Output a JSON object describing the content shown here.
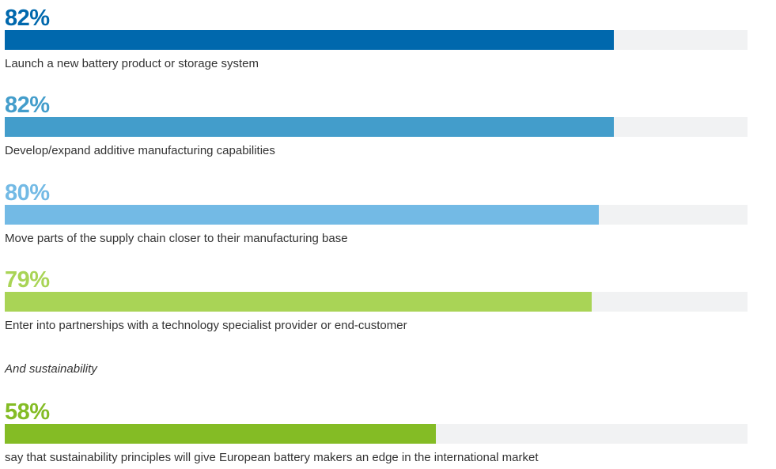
{
  "chart_data": {
    "type": "bar",
    "orientation": "horizontal",
    "title": "",
    "xlabel": "",
    "ylabel": "",
    "xlim": [
      0,
      100
    ],
    "grid": false,
    "legend": null,
    "track_color": "#f1f2f3",
    "categories": [
      "Launch a new battery product or storage system",
      "Develop/expand additive manufacturing capabilities",
      "Move parts of the supply chain closer to their manufacturing base",
      "Enter into partnerships with a technology specialist provider or end-customer",
      "say that sustainability principles will give European battery makers an edge in the international market"
    ],
    "values": [
      82,
      82,
      80,
      79,
      58
    ],
    "value_labels": [
      "82%",
      "82%",
      "80%",
      "79%",
      "58%"
    ],
    "colors": [
      "#0068ad",
      "#439dcb",
      "#73bae5",
      "#a9d456",
      "#84bc25"
    ],
    "annotations": [
      "And sustainability"
    ]
  },
  "items": [
    {
      "pct": "82%",
      "value": 82,
      "label": "Launch a new battery product or storage system",
      "color": "#0068ad"
    },
    {
      "pct": "82%",
      "value": 82,
      "label": "Develop/expand additive manufacturing capabilities",
      "color": "#439dcb"
    },
    {
      "pct": "80%",
      "value": 80,
      "label": "Move parts of the supply chain closer to their manufacturing base",
      "color": "#73bae5"
    },
    {
      "pct": "79%",
      "value": 79,
      "label": "Enter into partnerships with a technology specialist provider or end-customer",
      "color": "#a9d456"
    },
    {
      "pct": "58%",
      "value": 58,
      "label": "say that sustainability principles will give European battery makers an edge in the international market",
      "color": "#84bc25"
    }
  ],
  "subheading": "And sustainability"
}
